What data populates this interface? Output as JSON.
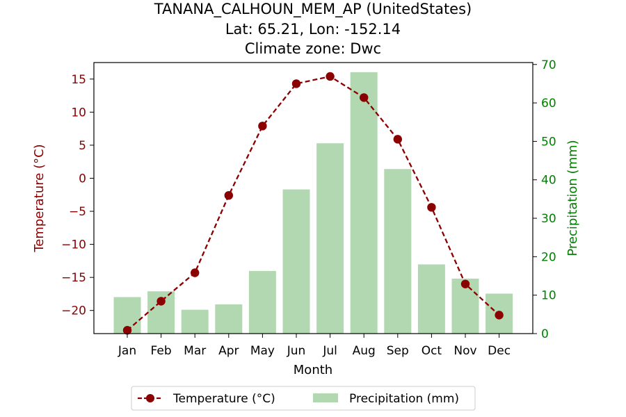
{
  "title_lines": [
    "TANANA_CALHOUN_MEM_AP (UnitedStates)",
    "Lat: 65.21, Lon: -152.14",
    "Climate zone: Dwc"
  ],
  "chart_data": {
    "type": "bar+line",
    "categories": [
      "Jan",
      "Feb",
      "Mar",
      "Apr",
      "May",
      "Jun",
      "Jul",
      "Aug",
      "Sep",
      "Oct",
      "Nov",
      "Dec"
    ],
    "xlabel": "Month",
    "temperature": {
      "name": "Temperature (°C)",
      "axis_label": "Temperature (°C)",
      "values": [
        -23.0,
        -18.6,
        -14.3,
        -2.6,
        7.9,
        14.3,
        15.4,
        12.2,
        5.9,
        -4.4,
        -16.0,
        -20.7
      ],
      "ylim": [
        -23.5,
        17.5
      ],
      "ticks": [
        -20,
        -15,
        -10,
        -5,
        0,
        5,
        10,
        15
      ],
      "tick_labels": [
        "−20",
        "−15",
        "−10",
        "−5",
        "0",
        "5",
        "10",
        "15"
      ],
      "color": "#8b0000",
      "style": "dashed line with circle markers"
    },
    "precipitation": {
      "name": "Precipitation (mm)",
      "axis_label": "Precipitation (mm)",
      "values": [
        9.5,
        11.0,
        6.2,
        7.6,
        16.3,
        37.5,
        49.5,
        68.0,
        42.8,
        18.0,
        14.3,
        10.4
      ],
      "ylim": [
        0,
        70.5
      ],
      "ticks": [
        0,
        10,
        20,
        30,
        40,
        50,
        60,
        70
      ],
      "tick_labels": [
        "0",
        "10",
        "20",
        "30",
        "40",
        "50",
        "60",
        "70"
      ],
      "color": "#b2d8b2",
      "tick_color": "#008000"
    },
    "legend": {
      "position": "bottom-center",
      "entries": [
        "Temperature (°C)",
        "Precipitation (mm)"
      ]
    },
    "grid": false
  }
}
